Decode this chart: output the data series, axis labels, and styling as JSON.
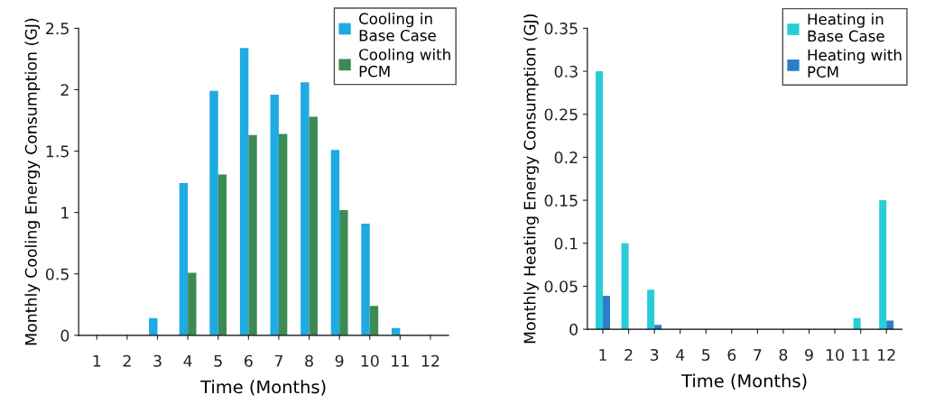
{
  "chart_data": [
    {
      "type": "bar",
      "categories": [
        "1",
        "2",
        "3",
        "4",
        "5",
        "6",
        "7",
        "8",
        "9",
        "10",
        "11",
        "12"
      ],
      "xlabel": "Time (Months)",
      "ylabel": "Monthly Cooling Energy Consumption (GJ)",
      "ylim": [
        0,
        2.5
      ],
      "yticks": [
        0,
        0.5,
        1,
        1.5,
        2,
        2.5
      ],
      "legend": "top right",
      "grid": false,
      "series": [
        {
          "name": "Cooling in\nBase Case",
          "color": "#1eaae2",
          "values": [
            0,
            0,
            0.14,
            1.24,
            1.99,
            2.34,
            1.96,
            2.06,
            1.51,
            0.91,
            0.06,
            0
          ]
        },
        {
          "name": "Cooling with\nPCM",
          "color": "#3d8b54",
          "values": [
            0,
            0,
            0,
            0.51,
            1.31,
            1.63,
            1.64,
            1.78,
            1.02,
            0.24,
            0,
            0
          ]
        }
      ]
    },
    {
      "type": "bar",
      "categories": [
        "1",
        "2",
        "3",
        "4",
        "5",
        "6",
        "7",
        "8",
        "9",
        "10",
        "11",
        "12"
      ],
      "xlabel": "Time (Months)",
      "ylabel": "Monthly Heating Energy Consumption (GJ)",
      "ylim": [
        0,
        0.35
      ],
      "yticks": [
        0,
        0.05,
        0.1,
        0.15,
        0.2,
        0.25,
        0.3,
        0.35
      ],
      "legend": "top right",
      "grid": false,
      "series": [
        {
          "name": "Heating in\nBase Case",
          "color": "#28cdd8",
          "values": [
            0.3,
            0.1,
            0.046,
            0,
            0,
            0,
            0,
            0,
            0,
            0,
            0.013,
            0.15
          ]
        },
        {
          "name": "Heating with\nPCM",
          "color": "#2a7fc8",
          "values": [
            0.039,
            0,
            0.005,
            0,
            0,
            0,
            0,
            0,
            0,
            0,
            0,
            0.01
          ]
        }
      ]
    }
  ]
}
